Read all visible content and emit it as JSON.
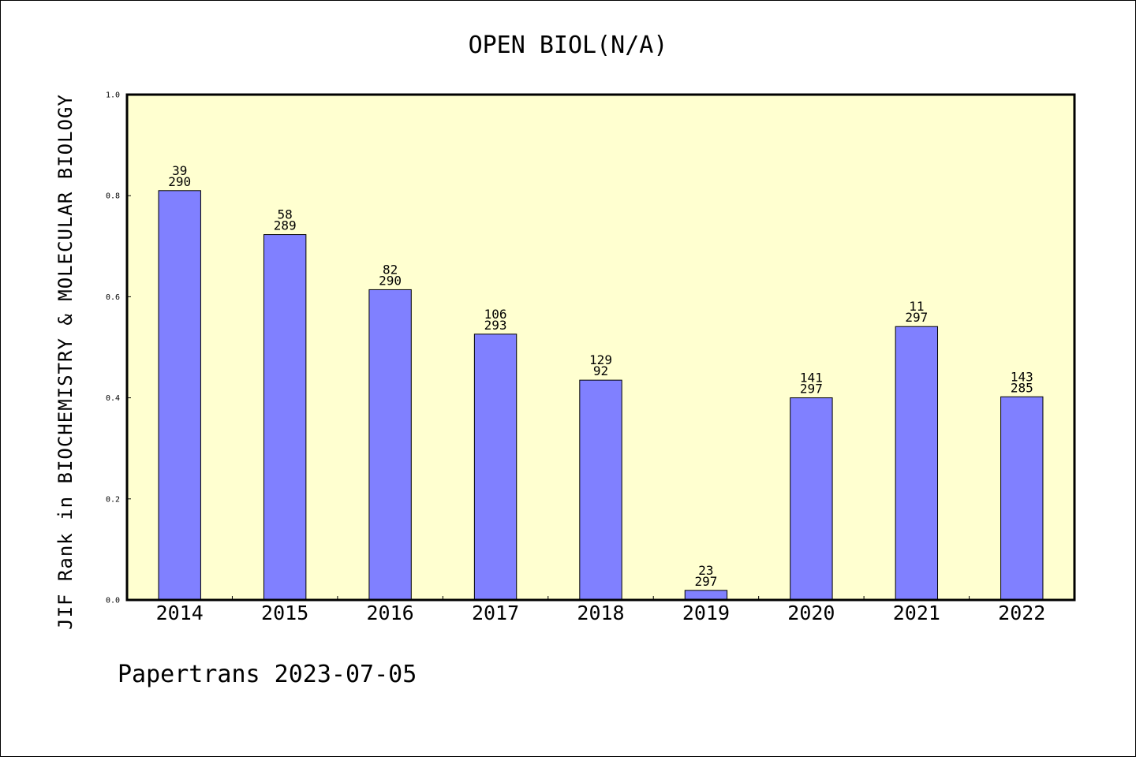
{
  "chart_data": {
    "type": "bar",
    "title": "OPEN BIOL(N/A)",
    "xlabel": "",
    "ylabel": "JIF Rank in BIOCHEMISTRY & MOLECULAR BIOLOGY",
    "ylim": [
      0.0,
      1.0
    ],
    "yticks": [
      "0.0",
      "0.2",
      "0.4",
      "0.6",
      "0.8",
      "1.0"
    ],
    "grid": false,
    "categories": [
      "2014",
      "2015",
      "2016",
      "2017",
      "2018",
      "2019",
      "2020",
      "2021",
      "2022"
    ],
    "values": [
      0.81,
      0.723,
      0.614,
      0.526,
      0.435,
      0.019,
      0.4,
      0.541,
      0.402
    ],
    "labels_top": [
      "39",
      "58",
      "82",
      "106",
      "129",
      "23",
      "141",
      "11",
      "143"
    ],
    "labels_bottom": [
      "290",
      "289",
      "290",
      "293",
      "92",
      "297",
      "297",
      "297",
      "285"
    ],
    "colors": {
      "bar": "#8080ff",
      "plot_background": "#ffffd0",
      "page_background": "#ffffff",
      "axis": "#000000"
    }
  },
  "footer": "Papertrans 2023-07-05"
}
